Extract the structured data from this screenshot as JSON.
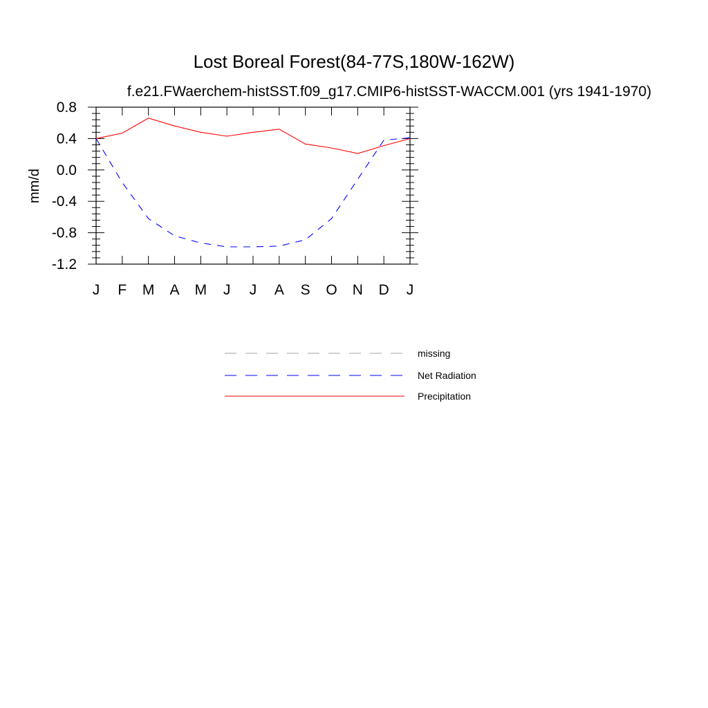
{
  "chart_data": {
    "type": "line",
    "title": "Lost Boreal Forest(84-77S,180W-162W)",
    "subtitle": "f.e21.FWaerchem-histSST.f09_g17.CMIP6-histSST-WACCM.001 (yrs 1941-1970)",
    "xlabel": "",
    "ylabel": "mm/d",
    "categories": [
      "J",
      "F",
      "M",
      "A",
      "M",
      "J",
      "J",
      "A",
      "S",
      "O",
      "N",
      "D",
      "J"
    ],
    "ylim": [
      -1.2,
      0.8
    ],
    "yticks": [
      "0.8",
      "0.4",
      "0.0",
      "-0.4",
      "-0.8",
      "-1.2"
    ],
    "series": [
      {
        "name": "Net Radiation",
        "color": "#0000ff",
        "dash": "dashed",
        "values": [
          0.4,
          -0.16,
          -0.62,
          -0.84,
          -0.93,
          -0.98,
          -0.98,
          -0.97,
          -0.89,
          -0.62,
          -0.12,
          0.38,
          0.41
        ]
      },
      {
        "name": "Precipitation",
        "color": "#ff0000",
        "dash": "solid",
        "values": [
          0.4,
          0.47,
          0.66,
          0.56,
          0.48,
          0.43,
          0.48,
          0.52,
          0.33,
          0.28,
          0.21,
          0.31,
          0.4
        ]
      }
    ],
    "legend": {
      "placement": "below",
      "items": [
        {
          "name": "missing",
          "color": "#a0a0a0",
          "dash": "dashed"
        },
        {
          "name": "Net Radiation",
          "color": "#0000ff",
          "dash": "dashed"
        },
        {
          "name": "Precipitation",
          "color": "#ff0000",
          "dash": "solid"
        }
      ]
    }
  }
}
